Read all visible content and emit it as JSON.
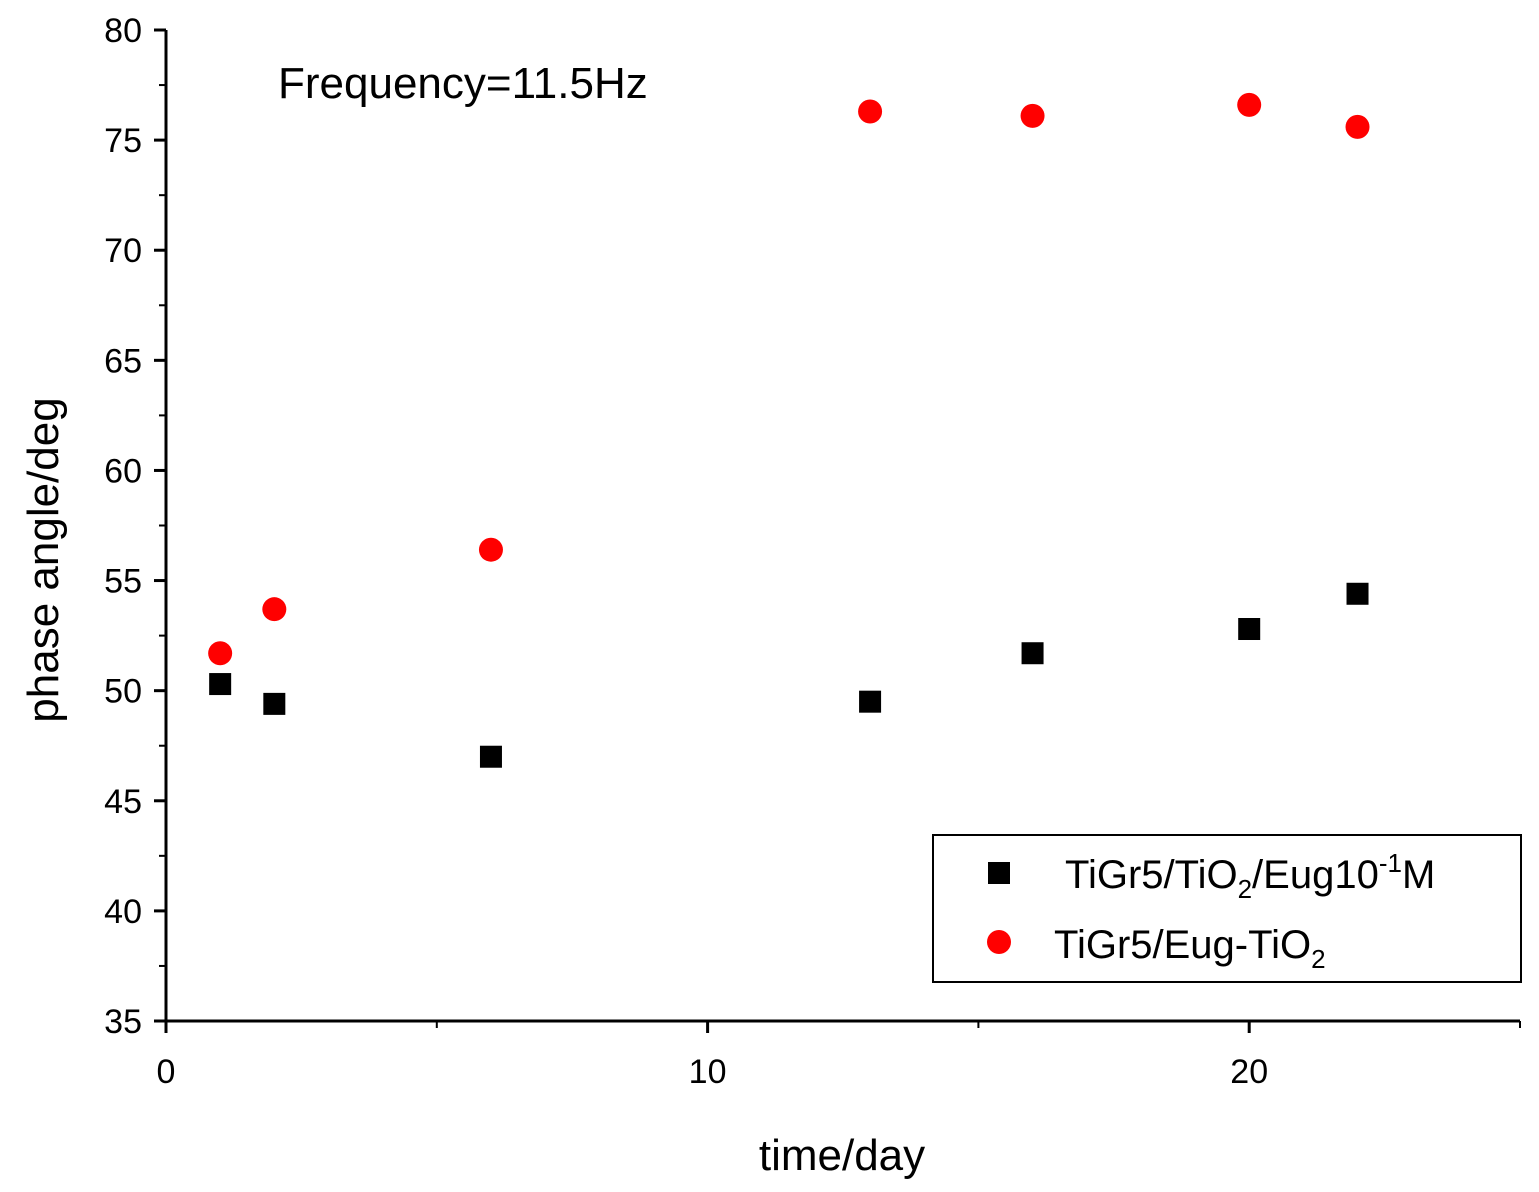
{
  "chart_data": {
    "type": "scatter",
    "title": "",
    "annotation": "Frequency=11.5Hz",
    "xlabel": "time/day",
    "ylabel": "phase angle/deg",
    "xlim": [
      0,
      25
    ],
    "ylim": [
      35,
      80
    ],
    "x_ticks": [
      0,
      10,
      20
    ],
    "x_minor_step": 5,
    "y_ticks": [
      35,
      40,
      45,
      50,
      55,
      60,
      65,
      70,
      75,
      80
    ],
    "y_minor_step": 2.5,
    "grid": false,
    "legend_position": "bottom-right",
    "series": [
      {
        "name": "TiGr5/TiO2/Eug10-1M",
        "legend_label": {
          "p1": "TiGr5/TiO",
          "sub": "2",
          "p2": "/Eug10",
          "sup": "-1",
          "p3": "M"
        },
        "marker": "square",
        "color": "#000000",
        "x": [
          1,
          2,
          6,
          13,
          16,
          20,
          22
        ],
        "y": [
          50.3,
          49.4,
          47.0,
          49.5,
          51.7,
          52.8,
          54.4
        ]
      },
      {
        "name": "TiGr5/Eug-TiO2",
        "legend_label": {
          "p1": "TiGr5/Eug-TiO",
          "sub": "2"
        },
        "marker": "circle",
        "color": "#ff0000",
        "x": [
          1,
          2,
          6,
          13,
          16,
          20,
          22
        ],
        "y": [
          51.7,
          53.7,
          56.4,
          76.3,
          76.1,
          76.6,
          75.6
        ]
      }
    ]
  }
}
